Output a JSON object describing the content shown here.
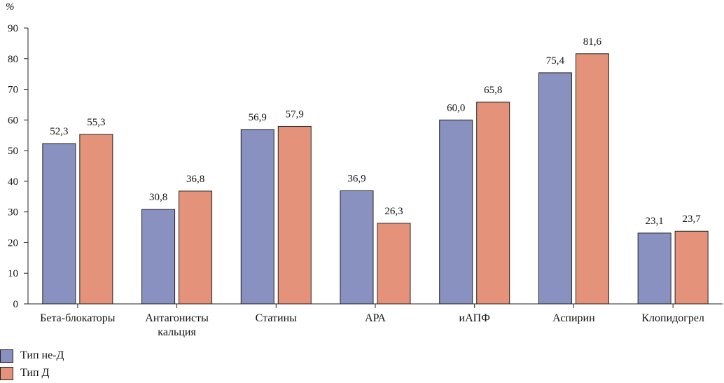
{
  "chart_data": {
    "type": "bar",
    "ylabel": "%",
    "ylim": [
      0,
      90
    ],
    "yticks": [
      "0",
      "10",
      "20",
      "30",
      "40",
      "50",
      "60",
      "70",
      "80",
      "90"
    ],
    "categories": [
      [
        "Бета-блокаторы"
      ],
      [
        "Антагонисты",
        "кальция"
      ],
      [
        "Статины"
      ],
      [
        "АРА"
      ],
      [
        "иАПФ"
      ],
      [
        "Аспирин"
      ],
      [
        "Клопидогрел"
      ]
    ],
    "series": [
      {
        "name": "Тип не-Д",
        "color": "#8891bf",
        "values": [
          52.3,
          30.8,
          56.9,
          36.9,
          60.0,
          75.4,
          23.1
        ],
        "labels": [
          "52,3",
          "30,8",
          "56,9",
          "36,9",
          "60,0",
          "75,4",
          "23,1"
        ]
      },
      {
        "name": "Тип Д",
        "color": "#e5927b",
        "values": [
          55.3,
          36.8,
          57.9,
          26.3,
          65.8,
          81.6,
          23.7
        ],
        "labels": [
          "55,3",
          "36,8",
          "57,9",
          "26,3",
          "65,8",
          "81,6",
          "23,7"
        ]
      }
    ],
    "grid": false,
    "legend_position": "bottom-left"
  }
}
